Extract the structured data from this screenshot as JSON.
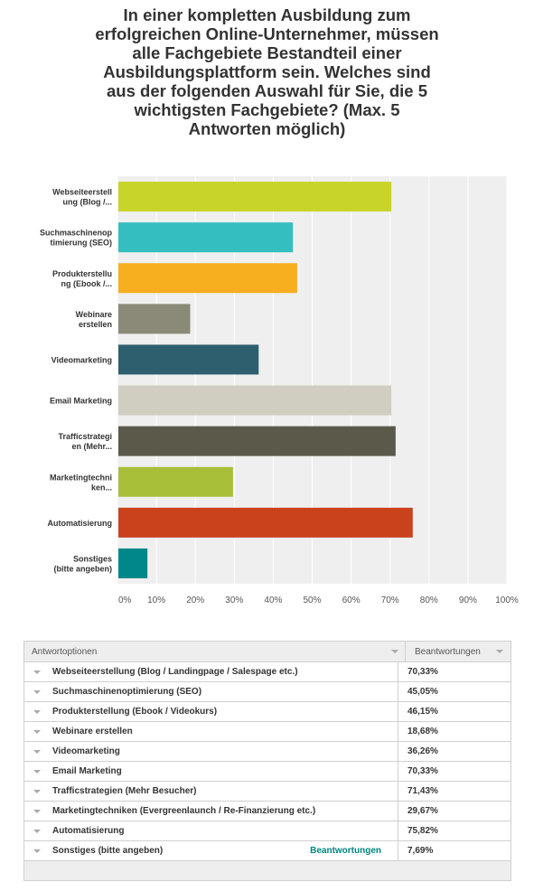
{
  "question": {
    "lines": [
      "In einer kompletten Ausbildung zum",
      "erfolgreichen Online-Unternehmer, müssen",
      "alle Fachgebiete Bestandteil einer",
      "Ausbildungsplattform sein. Welches sind",
      "aus der folgenden Auswahl für Sie, die 5",
      "wichtigsten Fachgebiete? (Max. 5",
      "Antworten möglich)"
    ]
  },
  "chart_data": {
    "type": "bar",
    "orientation": "horizontal",
    "categories": [
      [
        "Webseiteerstell",
        "ung (Blog /..."
      ],
      [
        "Suchmaschinenop",
        "timierung (SEO)"
      ],
      [
        "Produkterstellu",
        "ng (Ebook /..."
      ],
      [
        "Webinare",
        "erstellen"
      ],
      [
        "Videomarketing"
      ],
      [
        "Email Marketing"
      ],
      [
        "Trafficstrategi",
        "en (Mehr..."
      ],
      [
        "Marketingtechni",
        "ken..."
      ],
      [
        "Automatisierung"
      ],
      [
        "Sonstiges",
        "(bitte angeben)"
      ]
    ],
    "values": [
      70.33,
      45.05,
      46.15,
      18.68,
      36.26,
      70.33,
      71.43,
      29.67,
      75.82,
      7.69
    ],
    "colors": [
      "#c8d42a",
      "#35bec0",
      "#f7ae1f",
      "#8b8a78",
      "#2e5f6e",
      "#d0cec1",
      "#5b5a4a",
      "#a8bf3a",
      "#c9421b",
      "#00878a"
    ],
    "xlim": [
      0,
      100
    ],
    "xticks": [
      "0%",
      "10%",
      "20%",
      "30%",
      "40%",
      "50%",
      "60%",
      "70%",
      "80%",
      "90%",
      "100%"
    ],
    "grid": true,
    "background": "#efefef"
  },
  "table": {
    "header_option": "Antwortoptionen",
    "header_responses": "Beantwortungen",
    "rows": [
      {
        "option": "Webseiteerstellung (Blog / Landingpage / Salespage etc.)",
        "value": "70,33%"
      },
      {
        "option": "Suchmaschinenoptimierung (SEO)",
        "value": "45,05%"
      },
      {
        "option": "Produkterstellung (Ebook / Videokurs)",
        "value": "46,15%"
      },
      {
        "option": "Webinare erstellen",
        "value": "18,68%"
      },
      {
        "option": "Videomarketing",
        "value": "36,26%"
      },
      {
        "option": "Email Marketing",
        "value": "70,33%"
      },
      {
        "option": "Trafficstrategien (Mehr Besucher)",
        "value": "71,43%"
      },
      {
        "option": "Marketingtechniken (Evergreenlaunch / Re-Finanzierung etc.)",
        "value": "29,67%"
      },
      {
        "option": "Automatisierung",
        "value": "75,82%"
      },
      {
        "option": "Sonstiges (bitte angeben)",
        "value": "7,69%",
        "link": "Beantwortungen"
      }
    ]
  }
}
